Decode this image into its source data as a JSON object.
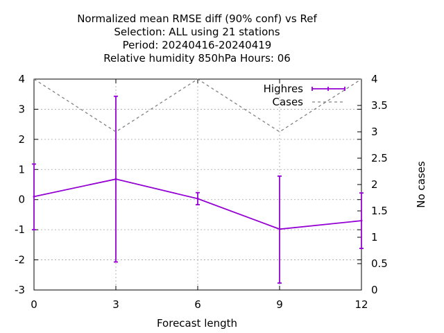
{
  "chart_data": {
    "type": "line",
    "title_lines": [
      "Normalized mean RMSE diff (90% conf) vs Ref",
      "Selection: ALL using    21 stations",
      "Period: 20240416-20240419",
      "Relative humidity 850hPa   Hours:  06"
    ],
    "xlabel": "Forecast length",
    "ylabel": "",
    "y2label": "No cases",
    "x": [
      0,
      3,
      6,
      9,
      12
    ],
    "xlim": [
      0,
      12
    ],
    "ylim": [
      -3,
      4
    ],
    "y2lim": [
      0,
      4
    ],
    "xticks": [
      0,
      3,
      6,
      9,
      12
    ],
    "yticks": [
      -3,
      -2,
      -1,
      0,
      1,
      2,
      3,
      4
    ],
    "y2ticks": [
      0,
      0.5,
      1,
      1.5,
      2,
      2.5,
      3,
      3.5,
      4
    ],
    "grid": true,
    "legend_position": "top-right",
    "series": [
      {
        "name": "Highres",
        "axis": "left",
        "color": "#9400d3",
        "style": "solid-errorbars",
        "values": [
          0.1,
          0.68,
          0.03,
          -0.98,
          -0.7
        ],
        "lower": [
          -1.0,
          -2.07,
          -0.17,
          -2.77,
          -1.62
        ],
        "upper": [
          1.18,
          3.43,
          0.23,
          0.78,
          0.22
        ]
      },
      {
        "name": "Cases",
        "axis": "right",
        "color": "#808080",
        "style": "dashed",
        "values": [
          4,
          3,
          4,
          3,
          4
        ]
      }
    ]
  }
}
